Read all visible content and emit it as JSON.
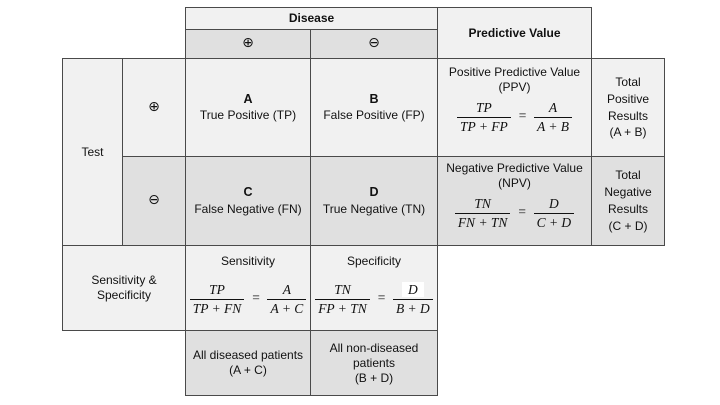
{
  "colors": {
    "light": "#f1f1f1",
    "dark": "#e0e0e0",
    "border": "#4a4a4a"
  },
  "headers": {
    "disease": "Disease",
    "predictive_value": "Predictive Value",
    "test": "Test",
    "sens_spec": "Sensitivity &\nSpecificity",
    "disease_positive_symbol": "⊕",
    "disease_negative_symbol": "⊖",
    "test_positive_symbol": "⊕",
    "test_negative_symbol": "⊖"
  },
  "matrix": {
    "a_letter": "A",
    "a_label": "True Positive (TP)",
    "b_letter": "B",
    "b_label": "False Positive (FP)",
    "c_letter": "C",
    "c_label": "False Negative (FN)",
    "d_letter": "D",
    "d_label": "True Negative (TN)"
  },
  "ppv": {
    "title": "Positive Predictive Value\n(PPV)",
    "num1": "TP",
    "den1": "TP + FP",
    "equals": "=",
    "num2": "A",
    "den2": "A + B"
  },
  "npv": {
    "title": "Negative Predictive Value\n(NPV)",
    "num1": "TN",
    "den1": "FN + TN",
    "equals": "=",
    "num2": "D",
    "den2": "C + D"
  },
  "sensitivity": {
    "title": "Sensitivity",
    "num1": "TP",
    "den1": "TP + FN",
    "equals": "=",
    "num2": "A",
    "den2": "A + C"
  },
  "specificity": {
    "title": "Specificity",
    "num1": "TN",
    "den1": "FP + TN",
    "equals": "=",
    "num2": "D",
    "den2": "B + D"
  },
  "totals": {
    "positive": "Total\nPositive\nResults\n(A + B)",
    "negative": "Total\nNegative\nResults\n(C + D)"
  },
  "footers": {
    "diseased": "All diseased patients\n(A + C)",
    "non_diseased": "All non-diseased\npatients\n(B + D)"
  }
}
